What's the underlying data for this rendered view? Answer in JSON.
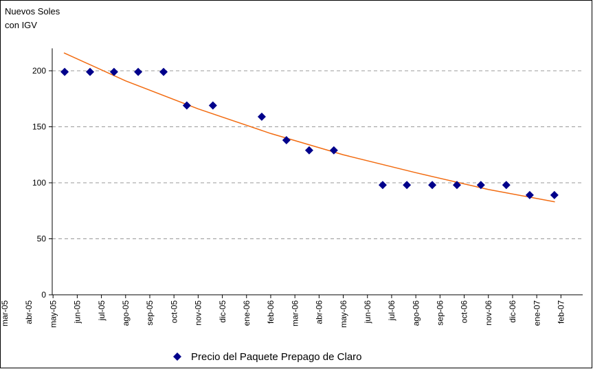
{
  "chart_data": {
    "type": "scatter",
    "y_label": [
      "Nuevos Soles",
      "con IGV"
    ],
    "xlim": [
      1,
      22.9
    ],
    "xticks": [
      {
        "value": 0,
        "label": "mar-05"
      },
      {
        "value": 1,
        "label": "abr-05"
      },
      {
        "value": 2,
        "label": "may-05"
      },
      {
        "value": 3,
        "label": "jun-05"
      },
      {
        "value": 4,
        "label": "jul-05"
      },
      {
        "value": 5,
        "label": "ago-05"
      },
      {
        "value": 6,
        "label": "sep-05"
      },
      {
        "value": 7,
        "label": "oct-05"
      },
      {
        "value": 8,
        "label": "nov-05"
      },
      {
        "value": 9,
        "label": "dic-05"
      },
      {
        "value": 10,
        "label": "ene-06"
      },
      {
        "value": 11,
        "label": "feb-06"
      },
      {
        "value": 12,
        "label": "mar-06"
      },
      {
        "value": 13,
        "label": "abr-06"
      },
      {
        "value": 14,
        "label": "may-06"
      },
      {
        "value": 15,
        "label": "jun-06"
      },
      {
        "value": 16,
        "label": "jul-06"
      },
      {
        "value": 17,
        "label": "ago-06"
      },
      {
        "value": 18,
        "label": "sep-06"
      },
      {
        "value": 19,
        "label": "oct-06"
      },
      {
        "value": 20,
        "label": "nov-06"
      },
      {
        "value": 21,
        "label": "dic-06"
      },
      {
        "value": 22,
        "label": "ene-07"
      },
      {
        "value": 23,
        "label": "feb-07"
      }
    ],
    "ylim": [
      0,
      220
    ],
    "yticks": [
      0,
      50,
      100,
      150,
      200
    ],
    "grid": true,
    "legend": "bottom",
    "series": [
      {
        "name": "Precio del Paquete Prepago de Claro",
        "color": "#00008b",
        "x": [
          1.48,
          2.53,
          3.52,
          4.52,
          5.57,
          6.53,
          7.61,
          9.63,
          10.65,
          11.59,
          12.61,
          14.63,
          15.63,
          16.68,
          17.7,
          18.69,
          19.74,
          20.71,
          21.73
        ],
        "values": [
          199,
          199,
          199,
          199,
          199,
          169,
          169,
          159,
          138,
          129,
          129,
          98,
          98,
          98,
          98,
          98,
          98,
          89,
          89
        ]
      }
    ],
    "trendline": {
      "color": "#f26b10",
      "x": [
        1.45,
        4,
        7,
        10,
        13,
        16,
        19,
        21.75
      ],
      "values": [
        216,
        191,
        166,
        144,
        125,
        109,
        94,
        83
      ]
    }
  }
}
